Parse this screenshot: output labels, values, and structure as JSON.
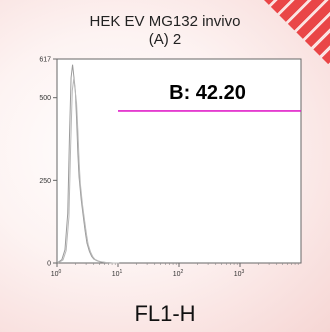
{
  "chart_data": {
    "type": "area",
    "title_line1": "HEK EV MG132 invivo",
    "title_line2": "(A) 2",
    "xlabel": "FL1-H",
    "x_scale": "log",
    "xlim": [
      1,
      10000
    ],
    "ylim": [
      0,
      617
    ],
    "y_ticks": [
      "0",
      "250",
      "500",
      "617"
    ],
    "x_ticks": [
      {
        "value": 1,
        "base": "10",
        "exp": "0"
      },
      {
        "value": 10,
        "base": "10",
        "exp": "1"
      },
      {
        "value": 100,
        "base": "10",
        "exp": "2"
      },
      {
        "value": 1000,
        "base": "10",
        "exp": "3"
      }
    ],
    "gate": {
      "label": "B: 42.20",
      "x_start": 10,
      "x_end": 10000,
      "y": 460
    },
    "histogram": {
      "x": [
        1.0,
        1.2,
        1.35,
        1.5,
        1.6,
        1.7,
        1.8,
        1.9,
        2.0,
        2.1,
        2.2,
        2.3,
        2.5,
        2.7,
        2.9,
        3.1,
        3.4,
        3.7,
        4.0,
        4.5,
        5.0,
        6.0,
        7.0,
        8.0,
        10.0
      ],
      "y": [
        0,
        10,
        40,
        150,
        380,
        560,
        600,
        560,
        520,
        430,
        330,
        260,
        190,
        140,
        95,
        60,
        35,
        20,
        12,
        7,
        4,
        2,
        1,
        0,
        0
      ]
    },
    "colors": {
      "histogram": "#9a9a9a",
      "gate": "#e020c8",
      "gate_text": "#000000",
      "accent_stripes": "#e8383a"
    }
  }
}
